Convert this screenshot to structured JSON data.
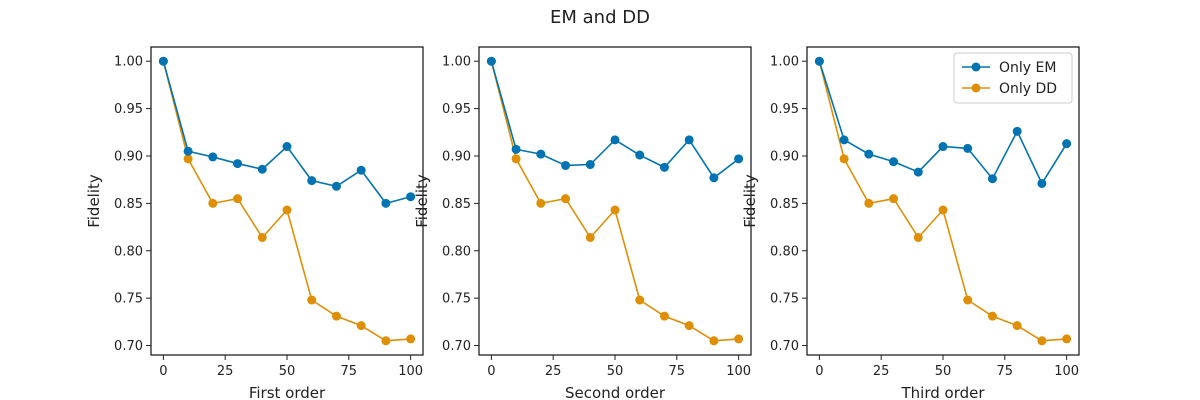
{
  "figure": {
    "title": "EM and DD"
  },
  "colors": {
    "em": "#0173b2",
    "dd": "#de8f05",
    "frame": "#222222"
  },
  "chart_data": [
    {
      "type": "line",
      "xlabel": "First order",
      "ylabel": "Fidelity",
      "xlim": [
        -5,
        105
      ],
      "ylim": [
        0.69,
        1.015
      ],
      "xticks": [
        "0",
        "25",
        "50",
        "75",
        "100"
      ],
      "yticks": [
        "0.70",
        "0.75",
        "0.80",
        "0.85",
        "0.90",
        "0.95",
        "1.00"
      ],
      "x": [
        0,
        10,
        20,
        30,
        40,
        50,
        60,
        70,
        80,
        90,
        100
      ],
      "series": [
        {
          "name": "Only EM",
          "values": [
            1.0,
            0.905,
            0.899,
            0.892,
            0.886,
            0.91,
            0.874,
            0.868,
            0.885,
            0.85,
            0.857
          ]
        },
        {
          "name": "Only DD",
          "values": [
            1.0,
            0.897,
            0.85,
            0.855,
            0.814,
            0.843,
            0.748,
            0.731,
            0.721,
            0.705,
            0.707
          ]
        }
      ],
      "legend": false
    },
    {
      "type": "line",
      "xlabel": "Second order",
      "ylabel": "Fidelity",
      "xlim": [
        -5,
        105
      ],
      "ylim": [
        0.69,
        1.015
      ],
      "xticks": [
        "0",
        "25",
        "50",
        "75",
        "100"
      ],
      "yticks": [
        "0.70",
        "0.75",
        "0.80",
        "0.85",
        "0.90",
        "0.95",
        "1.00"
      ],
      "x": [
        0,
        10,
        20,
        30,
        40,
        50,
        60,
        70,
        80,
        90,
        100
      ],
      "series": [
        {
          "name": "Only EM",
          "values": [
            1.0,
            0.907,
            0.902,
            0.89,
            0.891,
            0.917,
            0.901,
            0.888,
            0.917,
            0.877,
            0.897
          ]
        },
        {
          "name": "Only DD",
          "values": [
            1.0,
            0.897,
            0.85,
            0.855,
            0.814,
            0.843,
            0.748,
            0.731,
            0.721,
            0.705,
            0.707
          ]
        }
      ],
      "legend": false
    },
    {
      "type": "line",
      "xlabel": "Third order",
      "ylabel": "Fidelity",
      "xlim": [
        -5,
        105
      ],
      "ylim": [
        0.69,
        1.015
      ],
      "xticks": [
        "0",
        "25",
        "50",
        "75",
        "100"
      ],
      "yticks": [
        "0.70",
        "0.75",
        "0.80",
        "0.85",
        "0.90",
        "0.95",
        "1.00"
      ],
      "x": [
        0,
        10,
        20,
        30,
        40,
        50,
        60,
        70,
        80,
        90,
        100
      ],
      "series": [
        {
          "name": "Only EM",
          "values": [
            1.0,
            0.917,
            0.902,
            0.894,
            0.883,
            0.91,
            0.908,
            0.876,
            0.926,
            0.871,
            0.913
          ]
        },
        {
          "name": "Only DD",
          "values": [
            1.0,
            0.897,
            0.85,
            0.855,
            0.814,
            0.843,
            0.748,
            0.731,
            0.721,
            0.705,
            0.707
          ]
        }
      ],
      "legend": "top-right"
    }
  ]
}
